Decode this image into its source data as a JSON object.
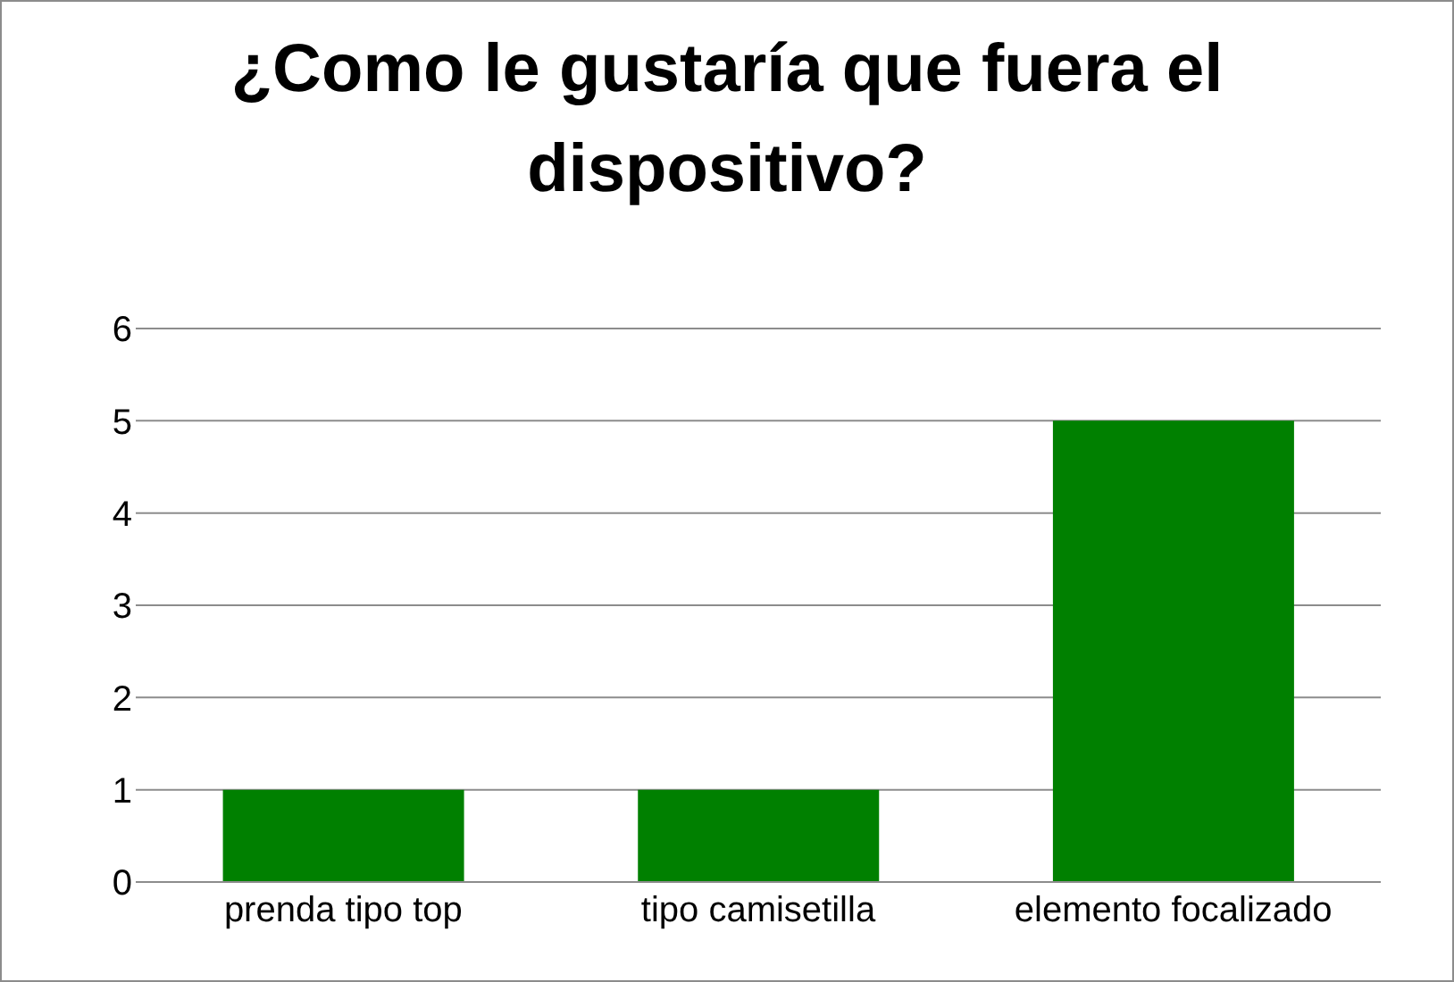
{
  "chart_data": {
    "type": "bar",
    "title": "¿Como le gustaría que fuera el dispositivo?",
    "categories": [
      "prenda tipo top",
      "tipo camisetilla",
      "elemento focalizado"
    ],
    "values": [
      1,
      1,
      5
    ],
    "color": "#008000",
    "ylim": [
      0,
      6
    ],
    "yticks": [
      0,
      1,
      2,
      3,
      4,
      5,
      6
    ],
    "grid": "y",
    "legend": false
  }
}
